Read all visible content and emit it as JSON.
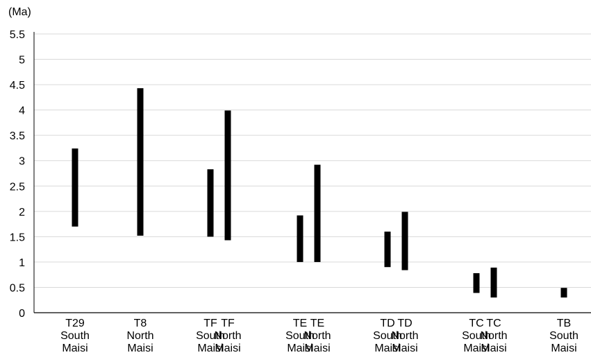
{
  "chart_data": {
    "type": "bar",
    "chart_kind": "floating-range",
    "unit": "(Ma)",
    "ylim": [
      0,
      5.5
    ],
    "yticks": [
      "0",
      "0.5",
      "1",
      "1.5",
      "2",
      "2.5",
      "3",
      "3.5",
      "4",
      "4.5",
      "5",
      "5.5"
    ],
    "grid": true,
    "legend": "none",
    "bar_color": "#000000",
    "grid_color": "#d9d9d9",
    "categories": [
      {
        "lines": [
          "T29",
          "South",
          "Maisi"
        ],
        "ranges": [
          {
            "low": 1.7,
            "high": 3.24
          }
        ]
      },
      {
        "lines": [
          "T8",
          "North",
          "Maisi"
        ],
        "ranges": [
          {
            "low": 1.52,
            "high": 4.43
          }
        ]
      },
      {
        "lines": [
          "TF",
          "South",
          "Maisi"
        ],
        "ranges": [
          {
            "low": 1.5,
            "high": 2.83
          }
        ]
      },
      {
        "lines": [
          "TF",
          "North",
          "Maisi"
        ],
        "ranges": [
          {
            "low": 1.43,
            "high": 3.99
          }
        ]
      },
      {
        "lines": [
          "TE",
          "South",
          "Maisi"
        ],
        "ranges": [
          {
            "low": 1.0,
            "high": 1.92
          }
        ]
      },
      {
        "lines": [
          "TE",
          "North",
          "Maisi"
        ],
        "ranges": [
          {
            "low": 1.0,
            "high": 2.92
          }
        ]
      },
      {
        "lines": [
          "TD",
          "South",
          "Maisi"
        ],
        "ranges": [
          {
            "low": 0.9,
            "high": 1.6
          }
        ]
      },
      {
        "lines": [
          "TD",
          "North",
          "Maisi"
        ],
        "ranges": [
          {
            "low": 0.84,
            "high": 1.99
          }
        ]
      },
      {
        "lines": [
          "TC",
          "South",
          "Maisi"
        ],
        "ranges": [
          {
            "low": 0.39,
            "high": 0.78
          }
        ]
      },
      {
        "lines": [
          "TC",
          "North",
          "Maisi"
        ],
        "ranges": [
          {
            "low": 0.3,
            "high": 0.89
          }
        ]
      },
      {
        "lines": [
          "TB",
          "South",
          "Maisi"
        ],
        "ranges": [
          {
            "low": 0.3,
            "high": 0.49
          }
        ]
      }
    ]
  }
}
